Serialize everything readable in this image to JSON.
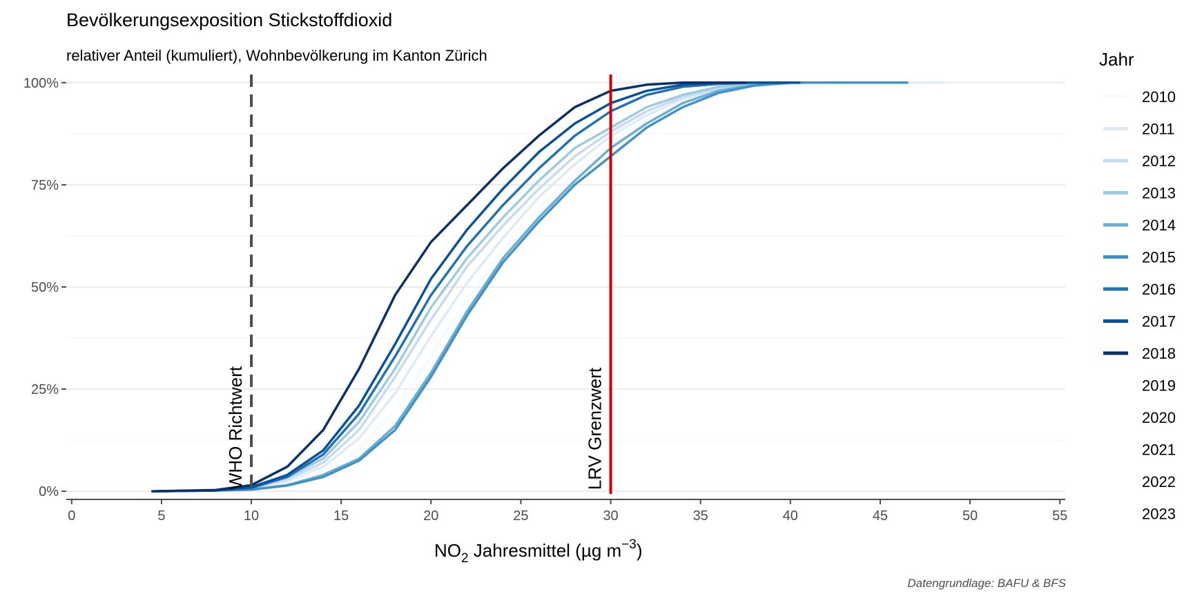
{
  "chart_data": {
    "type": "line",
    "title": "Bevölkerungsexposition Stickstoffdioxid",
    "subtitle": "relativer Anteil (kumuliert), Wohnbevölkerung im Kanton Zürich",
    "xlabel_main": "NO",
    "xlabel_sub": "2",
    "xlabel_rest": " Jahresmittel (µg m",
    "xlabel_sup": "−3",
    "xlabel_end": ")",
    "caption": "Datengrundlage: BAFU & BFS",
    "xlim": [
      -0.3,
      55.3
    ],
    "ylim": [
      -0.02,
      1.02
    ],
    "x_ticks": [
      0,
      5,
      10,
      15,
      20,
      25,
      30,
      35,
      40,
      45,
      50,
      55
    ],
    "x_tick_labels": [
      "0",
      "5",
      "10",
      "15",
      "20",
      "25",
      "30",
      "35",
      "40",
      "45",
      "50",
      "55"
    ],
    "y_ticks": [
      0,
      0.25,
      0.5,
      0.75,
      1.0
    ],
    "y_tick_labels": [
      "0%",
      "25%",
      "50%",
      "75%",
      "100%"
    ],
    "grid": true,
    "legend_title": "Jahr",
    "legend_position": "right",
    "reference_lines": [
      {
        "x": 10,
        "label": "WHO Richtwert",
        "style": "dashed",
        "color": "#4d4d4d"
      },
      {
        "x": 30,
        "label": "LRV Grenzwert",
        "style": "solid",
        "color": "#cc0000"
      }
    ],
    "series": [
      {
        "name": "2010",
        "color": "#f7fbff",
        "points": [
          [
            4.5,
            0
          ],
          [
            8,
            0.002
          ],
          [
            10,
            0.005
          ],
          [
            12,
            0.02
          ],
          [
            14,
            0.05
          ],
          [
            16,
            0.1
          ],
          [
            18,
            0.2
          ],
          [
            20,
            0.33
          ],
          [
            22,
            0.47
          ],
          [
            24,
            0.59
          ],
          [
            26,
            0.69
          ],
          [
            28,
            0.78
          ],
          [
            30,
            0.85
          ],
          [
            32,
            0.91
          ],
          [
            34,
            0.95
          ],
          [
            36,
            0.975
          ],
          [
            38,
            0.99
          ],
          [
            40,
            0.997
          ],
          [
            43,
            1.0
          ],
          [
            48.5,
            1.0
          ]
        ]
      },
      {
        "name": "2011",
        "color": "#deebf7",
        "points": [
          [
            4.5,
            0
          ],
          [
            8,
            0.002
          ],
          [
            10,
            0.006
          ],
          [
            12,
            0.025
          ],
          [
            14,
            0.06
          ],
          [
            16,
            0.13
          ],
          [
            18,
            0.24
          ],
          [
            20,
            0.38
          ],
          [
            22,
            0.51
          ],
          [
            24,
            0.62
          ],
          [
            26,
            0.72
          ],
          [
            28,
            0.8
          ],
          [
            30,
            0.87
          ],
          [
            32,
            0.92
          ],
          [
            34,
            0.96
          ],
          [
            36,
            0.98
          ],
          [
            38,
            0.993
          ],
          [
            41,
            1.0
          ],
          [
            48.5,
            1.0
          ]
        ]
      },
      {
        "name": "2012",
        "color": "#c6dbef",
        "points": [
          [
            4.5,
            0
          ],
          [
            8,
            0.002
          ],
          [
            10,
            0.007
          ],
          [
            12,
            0.03
          ],
          [
            14,
            0.07
          ],
          [
            16,
            0.15
          ],
          [
            18,
            0.28
          ],
          [
            20,
            0.42
          ],
          [
            22,
            0.55
          ],
          [
            24,
            0.65
          ],
          [
            26,
            0.74
          ],
          [
            28,
            0.82
          ],
          [
            30,
            0.88
          ],
          [
            32,
            0.93
          ],
          [
            34,
            0.965
          ],
          [
            36,
            0.985
          ],
          [
            38,
            0.995
          ],
          [
            41,
            1.0
          ],
          [
            46.5,
            1.0
          ]
        ]
      },
      {
        "name": "2013",
        "color": "#9ecae1",
        "points": [
          [
            4.5,
            0
          ],
          [
            8,
            0.002
          ],
          [
            10,
            0.008
          ],
          [
            12,
            0.035
          ],
          [
            14,
            0.08
          ],
          [
            16,
            0.17
          ],
          [
            18,
            0.3
          ],
          [
            20,
            0.45
          ],
          [
            22,
            0.57
          ],
          [
            24,
            0.67
          ],
          [
            26,
            0.76
          ],
          [
            28,
            0.84
          ],
          [
            30,
            0.89
          ],
          [
            32,
            0.94
          ],
          [
            34,
            0.97
          ],
          [
            36,
            0.99
          ],
          [
            38,
            0.997
          ],
          [
            40,
            1.0
          ],
          [
            46.5,
            1.0
          ]
        ]
      },
      {
        "name": "2014",
        "color": "#6baed6",
        "points": [
          [
            4.5,
            0
          ],
          [
            8,
            0.002
          ],
          [
            10,
            0.004
          ],
          [
            12,
            0.015
          ],
          [
            14,
            0.04
          ],
          [
            16,
            0.08
          ],
          [
            18,
            0.16
          ],
          [
            20,
            0.29
          ],
          [
            22,
            0.44
          ],
          [
            24,
            0.57
          ],
          [
            26,
            0.67
          ],
          [
            28,
            0.76
          ],
          [
            30,
            0.84
          ],
          [
            32,
            0.9
          ],
          [
            34,
            0.95
          ],
          [
            36,
            0.98
          ],
          [
            38,
            0.995
          ],
          [
            40,
            1.0
          ],
          [
            46.5,
            1.0
          ]
        ]
      },
      {
        "name": "2015",
        "color": "#4292c6",
        "points": [
          [
            4.5,
            0
          ],
          [
            8,
            0.002
          ],
          [
            10,
            0.004
          ],
          [
            12,
            0.014
          ],
          [
            14,
            0.035
          ],
          [
            16,
            0.075
          ],
          [
            18,
            0.15
          ],
          [
            20,
            0.28
          ],
          [
            22,
            0.43
          ],
          [
            24,
            0.56
          ],
          [
            26,
            0.66
          ],
          [
            28,
            0.75
          ],
          [
            30,
            0.82
          ],
          [
            32,
            0.89
          ],
          [
            34,
            0.94
          ],
          [
            36,
            0.975
          ],
          [
            38,
            0.993
          ],
          [
            40,
            1.0
          ],
          [
            46.5,
            1.0
          ]
        ]
      },
      {
        "name": "2016",
        "color": "#2171b5",
        "points": [
          [
            4.5,
            0
          ],
          [
            8,
            0.002
          ],
          [
            10,
            0.008
          ],
          [
            12,
            0.035
          ],
          [
            14,
            0.09
          ],
          [
            16,
            0.19
          ],
          [
            18,
            0.33
          ],
          [
            20,
            0.48
          ],
          [
            22,
            0.6
          ],
          [
            24,
            0.7
          ],
          [
            26,
            0.79
          ],
          [
            28,
            0.87
          ],
          [
            30,
            0.93
          ],
          [
            32,
            0.97
          ],
          [
            34,
            0.99
          ],
          [
            36,
            0.997
          ],
          [
            38,
            1.0
          ],
          [
            40.5,
            1.0
          ]
        ]
      },
      {
        "name": "2017",
        "color": "#08519c",
        "points": [
          [
            4.5,
            0
          ],
          [
            8,
            0.002
          ],
          [
            10,
            0.01
          ],
          [
            12,
            0.04
          ],
          [
            14,
            0.1
          ],
          [
            16,
            0.21
          ],
          [
            18,
            0.36
          ],
          [
            20,
            0.52
          ],
          [
            22,
            0.64
          ],
          [
            24,
            0.74
          ],
          [
            26,
            0.83
          ],
          [
            28,
            0.9
          ],
          [
            30,
            0.95
          ],
          [
            32,
            0.98
          ],
          [
            34,
            0.995
          ],
          [
            36,
            1.0
          ],
          [
            40.5,
            1.0
          ]
        ]
      },
      {
        "name": "2018",
        "color": "#08306b",
        "points": [
          [
            4.5,
            0
          ],
          [
            8,
            0.003
          ],
          [
            10,
            0.015
          ],
          [
            12,
            0.06
          ],
          [
            14,
            0.15
          ],
          [
            16,
            0.3
          ],
          [
            18,
            0.48
          ],
          [
            20,
            0.61
          ],
          [
            22,
            0.7
          ],
          [
            24,
            0.79
          ],
          [
            26,
            0.87
          ],
          [
            28,
            0.94
          ],
          [
            30,
            0.98
          ],
          [
            32,
            0.995
          ],
          [
            34,
            1.0
          ],
          [
            37.5,
            1.0
          ]
        ]
      },
      {
        "name": "2019",
        "color": "#ffffff",
        "points": []
      },
      {
        "name": "2020",
        "color": "#ffffff",
        "points": []
      },
      {
        "name": "2021",
        "color": "#ffffff",
        "points": []
      },
      {
        "name": "2022",
        "color": "#ffffff",
        "points": []
      },
      {
        "name": "2023",
        "color": "#ffffff",
        "points": []
      }
    ]
  }
}
